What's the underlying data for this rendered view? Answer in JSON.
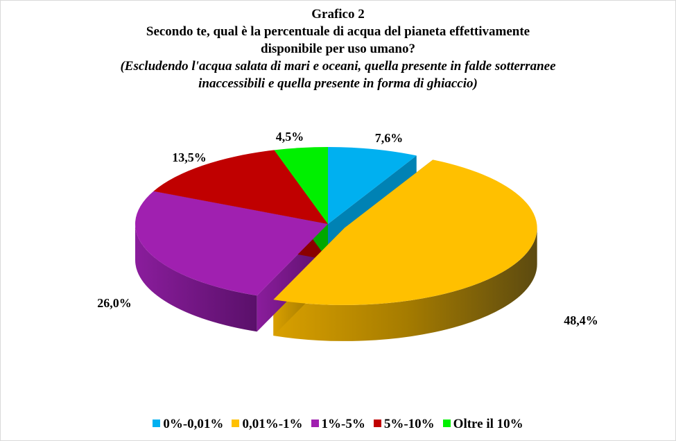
{
  "title": {
    "line1": "Grafico 2",
    "line2": "Secondo te, qual è la percentuale di acqua del pianeta effettivamente",
    "line3": "disponibile per uso umano?",
    "line4": "(Escludendo l'acqua salata di mari e oceani, quella presente in falde sotterranee",
    "line5": "inaccessibili e quella presente in forma di ghiaccio)"
  },
  "chart_data": {
    "type": "pie",
    "style": "3d-exploded",
    "categories": [
      "0%-0,01%",
      "0,01%-1%",
      "1%-5%",
      "5%-10%",
      "Oltre il 10%"
    ],
    "values": [
      7.6,
      48.4,
      26.0,
      13.5,
      4.5
    ],
    "labels": [
      "7,6%",
      "48,4%",
      "26,0%",
      "13,5%",
      "4,5%"
    ],
    "colors": [
      "#00b0f0",
      "#ffc000",
      "#a020b0",
      "#c00000",
      "#00f000"
    ],
    "exploded": [
      "0,01%-1%"
    ],
    "legend_position": "bottom"
  }
}
